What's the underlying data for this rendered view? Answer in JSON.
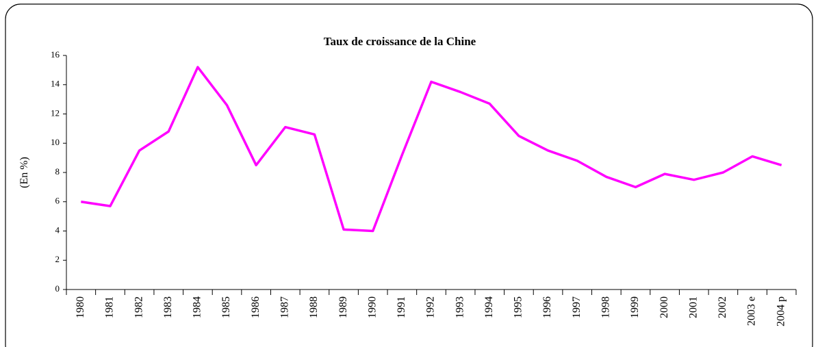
{
  "chart_data": {
    "type": "line",
    "title": "Taux de croissance de la Chine",
    "ylabel": "(En %)",
    "categories": [
      "1980",
      "1981",
      "1982",
      "1983",
      "1984",
      "1985",
      "1986",
      "1987",
      "1988",
      "1989",
      "1990",
      "1991",
      "1992",
      "1993",
      "1994",
      "1995",
      "1996",
      "1997",
      "1998",
      "1999",
      "2000",
      "2001",
      "2002",
      "2003 e",
      "2004 p"
    ],
    "series": [
      {
        "name": "Taux de croissance",
        "color": "#ff00ff",
        "values": [
          6.0,
          5.7,
          9.5,
          10.8,
          15.2,
          12.6,
          8.5,
          11.1,
          10.6,
          4.1,
          4.0,
          9.2,
          14.2,
          13.5,
          12.7,
          10.5,
          9.5,
          8.8,
          7.7,
          7.0,
          7.9,
          7.5,
          8.0,
          9.1,
          8.5
        ]
      }
    ],
    "ylim": [
      0,
      16
    ],
    "yticks": [
      0,
      2,
      4,
      6,
      8,
      10,
      12,
      14,
      16
    ],
    "grid": false,
    "legend": false
  }
}
